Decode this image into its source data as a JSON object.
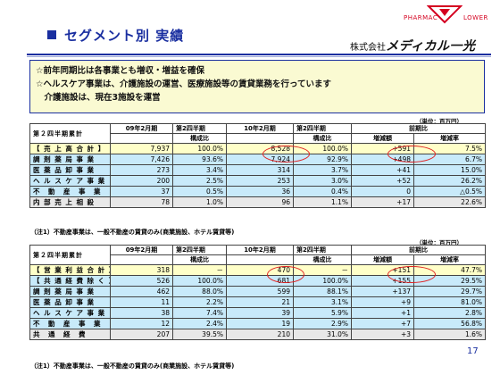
{
  "header": {
    "title": "セグメント別 実績",
    "logo_left": "PHARMAC",
    "logo_right": "LOWER",
    "company_prefix": "株式会社",
    "company_brand": "メディカル一光"
  },
  "notes": [
    "☆前年同期比は各事業とも増収・増益を確保",
    "☆ヘルスケア事業は、介護施設の運営、医療施設等の賃貸業務を行っています",
    "　介護施設は、現在3施設を運営"
  ],
  "unit": "（単位：百万円）",
  "headers": {
    "label": "第２四半期累計",
    "p09": "09年2月期",
    "p10": "10年2月期",
    "q2": "第2四半期",
    "share": "構成比",
    "prev": "前期比",
    "diff": "増減額",
    "rate": "増減率"
  },
  "table1": {
    "rows": [
      {
        "label": "【 売 上 高 合 計 】",
        "a": "7,937",
        "b": "100.0%",
        "c": "8,528",
        "d": "100.0%",
        "e": "+591",
        "f": "7.5%"
      },
      {
        "label": "調 剤 薬 局 事 業",
        "a": "7,426",
        "b": "93.6%",
        "c": "7,924",
        "d": "92.9%",
        "e": "+498",
        "f": "6.7%"
      },
      {
        "label": "医 薬 品 卸 事 業",
        "a": "273",
        "b": "3.4%",
        "c": "314",
        "d": "3.7%",
        "e": "+41",
        "f": "15.0%"
      },
      {
        "label": "ヘ ル ス ケ ア 事 業",
        "a": "200",
        "b": "2.5%",
        "c": "253",
        "d": "3.0%",
        "e": "+52",
        "f": "26.2%"
      },
      {
        "label": "不　動　産　事　業",
        "a": "37",
        "b": "0.5%",
        "c": "36",
        "d": "0.4%",
        "e": "0",
        "f": "△0.5%"
      },
      {
        "label": "内 部 売 上 相 殺",
        "a": "78",
        "b": "1.0%",
        "c": "96",
        "d": "1.1%",
        "e": "+17",
        "f": "22.6%"
      }
    ],
    "footnote": "（注1）不動産事業は、一般不動産の賃貸のみ(商業施設、ホテル賃貸等)"
  },
  "table2": {
    "rows": [
      {
        "label": "【 営 業 利 益 合 計 】",
        "a": "318",
        "b": "－",
        "c": "470",
        "d": "－",
        "e": "+151",
        "f": "47.7%"
      },
      {
        "label": "【 共 通 経 費 除 く 】",
        "a": "526",
        "b": "100.0%",
        "c": "681",
        "d": "100.0%",
        "e": "+155",
        "f": "29.5%"
      },
      {
        "label": "調 剤 薬 局 事 業",
        "a": "462",
        "b": "88.0%",
        "c": "599",
        "d": "88.1%",
        "e": "+137",
        "f": "29.7%"
      },
      {
        "label": "医 薬 品 卸 事 業",
        "a": "11",
        "b": "2.2%",
        "c": "21",
        "d": "3.1%",
        "e": "+9",
        "f": "81.0%"
      },
      {
        "label": "ヘ ル ス ケ ア 事 業",
        "a": "38",
        "b": "7.4%",
        "c": "39",
        "d": "5.9%",
        "e": "+1",
        "f": "2.8%"
      },
      {
        "label": "不　動　産　事　業",
        "a": "12",
        "b": "2.4%",
        "c": "19",
        "d": "2.9%",
        "e": "+7",
        "f": "56.8%"
      },
      {
        "label": "共　通　経　費",
        "a": "207",
        "b": "39.5%",
        "c": "210",
        "d": "31.0%",
        "e": "+3",
        "f": "1.6%"
      }
    ],
    "footnote": "（注1）不動産事業は、一般不動産の賃貸のみ(商業施設、ホテル賃貸等)"
  },
  "page_number": "17",
  "colors": {
    "accent": "#1a2fa0",
    "highlight_circle": "#e02020",
    "total_row": "#ffffc8",
    "segment_row": "#c8eafa"
  }
}
